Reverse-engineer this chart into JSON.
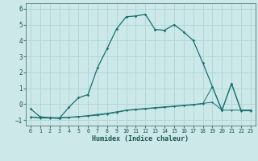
{
  "xlabel": "Humidex (Indice chaleur)",
  "xlim": [
    -0.5,
    23.5
  ],
  "ylim": [
    -1.35,
    6.35
  ],
  "yticks": [
    -1,
    0,
    1,
    2,
    3,
    4,
    5,
    6
  ],
  "xticks": [
    0,
    1,
    2,
    3,
    4,
    5,
    6,
    7,
    8,
    9,
    10,
    11,
    12,
    13,
    14,
    15,
    16,
    17,
    18,
    19,
    20,
    21,
    22,
    23
  ],
  "bg_color": "#cde8e8",
  "line_color": "#1a7070",
  "grid_color": "#b0d8d8",
  "line1_x": [
    0,
    1,
    2,
    3,
    4,
    5,
    6,
    7,
    8,
    9,
    10,
    11,
    12,
    13,
    14,
    15,
    16,
    17,
    18,
    19,
    20,
    21,
    22,
    23
  ],
  "line1_y": [
    -0.3,
    -0.8,
    -0.85,
    -0.9,
    -0.2,
    0.4,
    0.6,
    2.3,
    3.5,
    4.75,
    5.5,
    5.55,
    5.65,
    4.7,
    4.65,
    5.0,
    4.55,
    4.0,
    2.6,
    1.1,
    -0.4,
    1.3,
    -0.4,
    -0.4
  ],
  "line2_x": [
    0,
    1,
    2,
    3,
    4,
    5,
    6,
    7,
    8,
    9,
    10,
    11,
    12,
    13,
    14,
    15,
    16,
    17,
    18,
    19,
    20,
    21,
    22,
    23
  ],
  "line2_y": [
    -0.8,
    -0.85,
    -0.85,
    -0.85,
    -0.82,
    -0.78,
    -0.72,
    -0.65,
    -0.58,
    -0.48,
    -0.38,
    -0.32,
    -0.27,
    -0.22,
    -0.17,
    -0.12,
    -0.07,
    -0.02,
    0.05,
    0.12,
    -0.38,
    -0.38,
    -0.38,
    -0.38
  ],
  "line3_x": [
    0,
    1,
    2,
    3,
    4,
    5,
    6,
    7,
    8,
    9,
    10,
    11,
    12,
    13,
    14,
    15,
    16,
    17,
    18,
    19,
    20,
    21,
    22,
    23
  ],
  "line3_y": [
    -0.82,
    -0.88,
    -0.88,
    -0.88,
    -0.84,
    -0.8,
    -0.75,
    -0.7,
    -0.62,
    -0.52,
    -0.4,
    -0.35,
    -0.3,
    -0.25,
    -0.2,
    -0.15,
    -0.1,
    -0.05,
    0.02,
    1.1,
    -0.38,
    1.28,
    -0.42,
    -0.42
  ]
}
